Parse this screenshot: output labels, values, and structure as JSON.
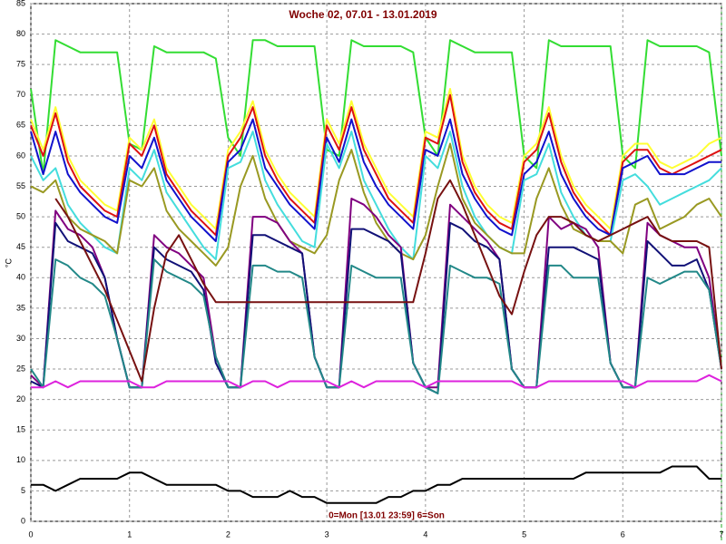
{
  "chart_data": {
    "type": "line",
    "title": "Woche 02, 07.01 - 13.01.2019",
    "y_label": "°C",
    "annotation": "0=Mon [13.01 23:59] 6=Son",
    "xlim": [
      0,
      7
    ],
    "xticks": [
      0,
      1,
      2,
      3,
      4,
      5,
      6,
      7
    ],
    "ylim": [
      0,
      85
    ],
    "yticks": [
      0,
      5,
      10,
      15,
      20,
      25,
      30,
      35,
      40,
      45,
      50,
      55,
      60,
      65,
      70,
      75,
      80,
      85
    ],
    "grid": true,
    "x": [
      0,
      0.125,
      0.25,
      0.375,
      0.5,
      0.625,
      0.75,
      0.875,
      1,
      1.125,
      1.25,
      1.375,
      1.5,
      1.625,
      1.75,
      1.875,
      2,
      2.125,
      2.25,
      2.375,
      2.5,
      2.625,
      2.75,
      2.875,
      3,
      3.125,
      3.25,
      3.375,
      3.5,
      3.625,
      3.75,
      3.875,
      4,
      4.125,
      4.25,
      4.375,
      4.5,
      4.625,
      4.75,
      4.875,
      5,
      5.125,
      5.25,
      5.375,
      5.5,
      5.625,
      5.75,
      5.875,
      6,
      6.125,
      6.25,
      6.375,
      6.5,
      6.625,
      6.75,
      6.875,
      7
    ],
    "series": [
      {
        "color": "#33dd33",
        "values": [
          71,
          57,
          79,
          78,
          77,
          77,
          77,
          77,
          62,
          61,
          78,
          77,
          77,
          77,
          77,
          76,
          63,
          60,
          79,
          79,
          78,
          78,
          78,
          78,
          61,
          60,
          79,
          78,
          78,
          78,
          78,
          77,
          63,
          60,
          79,
          78,
          77,
          77,
          77,
          77,
          60,
          58,
          79,
          78,
          78,
          78,
          78,
          78,
          60,
          58,
          79,
          78,
          78,
          78,
          78,
          77,
          60
        ]
      },
      {
        "color": "#ffff33",
        "values": [
          66,
          61,
          68,
          60,
          56,
          54,
          52,
          51,
          63,
          61,
          66,
          58,
          55,
          52,
          50,
          48,
          61,
          64,
          69,
          61,
          57,
          54,
          52,
          50,
          66,
          62,
          69,
          62,
          58,
          54,
          52,
          50,
          64,
          63,
          71,
          60,
          55,
          52,
          50,
          49,
          60,
          62,
          68,
          60,
          55,
          52,
          50,
          48,
          60,
          62,
          62,
          59,
          58,
          59,
          60,
          62,
          63
        ]
      },
      {
        "color": "#dd1111",
        "values": [
          65,
          60,
          67,
          59,
          55,
          53,
          51,
          50,
          62,
          60,
          65,
          57,
          54,
          51,
          49,
          47,
          60,
          63,
          68,
          60,
          56,
          53,
          51,
          49,
          65,
          61,
          68,
          61,
          57,
          53,
          51,
          49,
          63,
          62,
          70,
          59,
          54,
          51,
          49,
          48,
          59,
          61,
          67,
          59,
          54,
          51,
          49,
          47,
          59,
          61,
          61,
          58,
          57,
          58,
          59,
          60,
          61
        ]
      },
      {
        "color": "#1111cc",
        "values": [
          64,
          57,
          64,
          57,
          54,
          52,
          50,
          49,
          60,
          58,
          63,
          56,
          53,
          50,
          48,
          46,
          59,
          61,
          66,
          58,
          55,
          52,
          50,
          48,
          63,
          59,
          66,
          59,
          55,
          52,
          50,
          48,
          61,
          60,
          66,
          57,
          53,
          50,
          48,
          47,
          57,
          59,
          64,
          57,
          53,
          50,
          48,
          47,
          58,
          59,
          60,
          57,
          57,
          57,
          58,
          59,
          59
        ]
      },
      {
        "color": "#44dddd",
        "values": [
          60,
          56,
          58,
          52,
          49,
          47,
          45,
          44,
          58,
          56,
          61,
          54,
          51,
          48,
          45,
          43,
          58,
          59,
          64,
          56,
          52,
          49,
          46,
          45,
          62,
          58,
          64,
          56,
          52,
          48,
          45,
          43,
          60,
          58,
          64,
          55,
          50,
          47,
          45,
          44,
          56,
          57,
          62,
          54,
          50,
          47,
          46,
          46,
          56,
          57,
          55,
          52,
          53,
          54,
          55,
          56,
          58
        ]
      },
      {
        "color": "#999922",
        "values": [
          55,
          54,
          56,
          50,
          48,
          47,
          46,
          44,
          56,
          55,
          58,
          51,
          48,
          46,
          44,
          42,
          45,
          55,
          60,
          53,
          49,
          46,
          45,
          44,
          47,
          56,
          61,
          54,
          49,
          46,
          44,
          43,
          47,
          55,
          62,
          53,
          49,
          47,
          45,
          44,
          44,
          53,
          58,
          52,
          48,
          47,
          46,
          46,
          44,
          52,
          53,
          48,
          49,
          50,
          52,
          53,
          50
        ]
      },
      {
        "color": "#800080",
        "values": [
          24,
          22,
          51,
          48,
          47,
          45,
          40,
          30,
          22,
          22,
          47,
          45,
          44,
          42,
          40,
          27,
          22,
          22,
          50,
          50,
          49,
          46,
          44,
          27,
          22,
          22,
          53,
          52,
          50,
          47,
          45,
          26,
          22,
          22,
          52,
          50,
          48,
          46,
          43,
          25,
          22,
          22,
          50,
          48,
          49,
          48,
          45,
          26,
          22,
          22,
          49,
          47,
          46,
          45,
          45,
          40,
          25
        ]
      },
      {
        "color": "#111177",
        "values": [
          23,
          22,
          49,
          46,
          45,
          44,
          40,
          30,
          22,
          22,
          45,
          43,
          42,
          41,
          38,
          26,
          22,
          22,
          47,
          47,
          46,
          45,
          44,
          27,
          22,
          22,
          48,
          48,
          47,
          46,
          44,
          26,
          22,
          21,
          49,
          48,
          46,
          45,
          43,
          25,
          22,
          22,
          45,
          45,
          45,
          44,
          43,
          26,
          22,
          22,
          46,
          44,
          42,
          42,
          43,
          38,
          25
        ]
      },
      {
        "color": "#228888",
        "values": [
          25,
          22,
          43,
          42,
          40,
          39,
          37,
          30,
          22,
          22,
          43,
          41,
          40,
          39,
          37,
          27,
          22,
          22,
          42,
          42,
          41,
          41,
          40,
          27,
          22,
          22,
          42,
          41,
          40,
          40,
          40,
          26,
          22,
          21,
          42,
          41,
          40,
          40,
          39,
          25,
          22,
          22,
          42,
          42,
          40,
          40,
          40,
          26,
          22,
          22,
          40,
          39,
          40,
          41,
          41,
          38,
          25
        ]
      },
      {
        "color": "#771111",
        "values": [
          null,
          null,
          53,
          50,
          46,
          42,
          38,
          33,
          28,
          23,
          35,
          44,
          47,
          43,
          39,
          36,
          36,
          36,
          36,
          36,
          36,
          36,
          36,
          36,
          36,
          36,
          36,
          36,
          36,
          36,
          36,
          36,
          44,
          53,
          56,
          52,
          47,
          42,
          37,
          34,
          41,
          47,
          50,
          50,
          49,
          47,
          46,
          47,
          48,
          49,
          50,
          47,
          46,
          46,
          46,
          45,
          25
        ]
      },
      {
        "color": "#dd22dd",
        "values": [
          22,
          22,
          23,
          22,
          23,
          23,
          23,
          23,
          23,
          22,
          22,
          23,
          23,
          23,
          23,
          23,
          23,
          22,
          23,
          23,
          22,
          23,
          23,
          23,
          23,
          22,
          23,
          22,
          23,
          23,
          23,
          23,
          22,
          23,
          23,
          23,
          23,
          23,
          23,
          23,
          22,
          22,
          23,
          23,
          23,
          23,
          23,
          23,
          23,
          22,
          23,
          23,
          23,
          23,
          23,
          24,
          23
        ]
      },
      {
        "color": "#000000",
        "values": [
          6,
          6,
          5,
          6,
          7,
          7,
          7,
          7,
          8,
          8,
          7,
          6,
          6,
          6,
          6,
          6,
          5,
          5,
          4,
          4,
          4,
          5,
          4,
          4,
          3,
          3,
          3,
          3,
          3,
          4,
          4,
          5,
          5,
          6,
          6,
          7,
          7,
          7,
          7,
          7,
          7,
          7,
          7,
          7,
          7,
          8,
          8,
          8,
          8,
          8,
          8,
          8,
          9,
          9,
          9,
          7,
          7
        ]
      }
    ]
  }
}
